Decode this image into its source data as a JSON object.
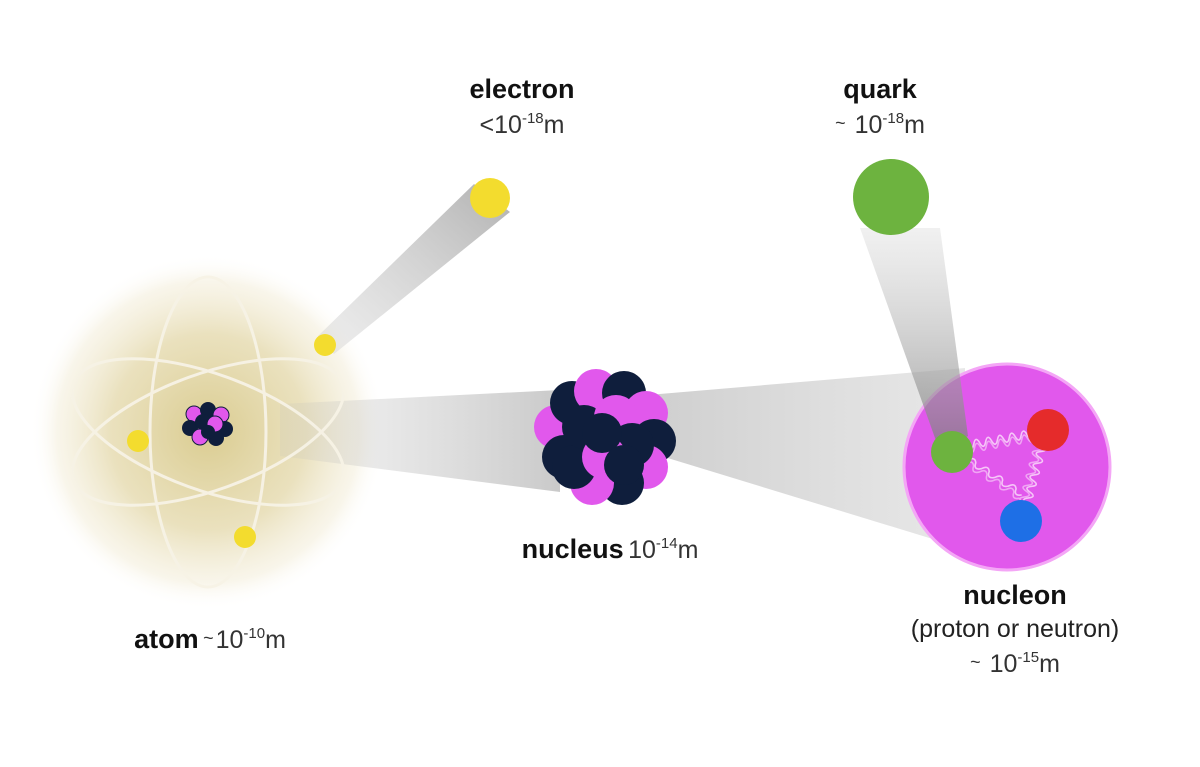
{
  "diagram": {
    "electron": {
      "name": "electron",
      "prefix": "<",
      "base": "10",
      "exp": "-18",
      "unit": "m"
    },
    "quark": {
      "name": "quark",
      "prefix": "~",
      "base": "10",
      "exp": "-18",
      "unit": "m"
    },
    "nucleus": {
      "name": "nucleus",
      "base": "10",
      "exp": "-14",
      "unit": "m"
    },
    "atom": {
      "name": "atom",
      "prefix": "~",
      "base": "10",
      "exp": "-10",
      "unit": "m"
    },
    "nucleon": {
      "name": "nucleon",
      "subtitle": "(proton or neutron)",
      "prefix": "~",
      "base": "10",
      "exp": "-15",
      "unit": "m"
    }
  },
  "colors": {
    "electron": "#f3dc2e",
    "quark_green": "#6db33f",
    "quark_red": "#e52b2b",
    "quark_blue": "#1e6fe6",
    "nucleon_fill": "#e158ec",
    "nucleus_dark": "#0f1e3c",
    "proton_pink": "#e158ec",
    "atom_glow": "#d9c98a"
  }
}
